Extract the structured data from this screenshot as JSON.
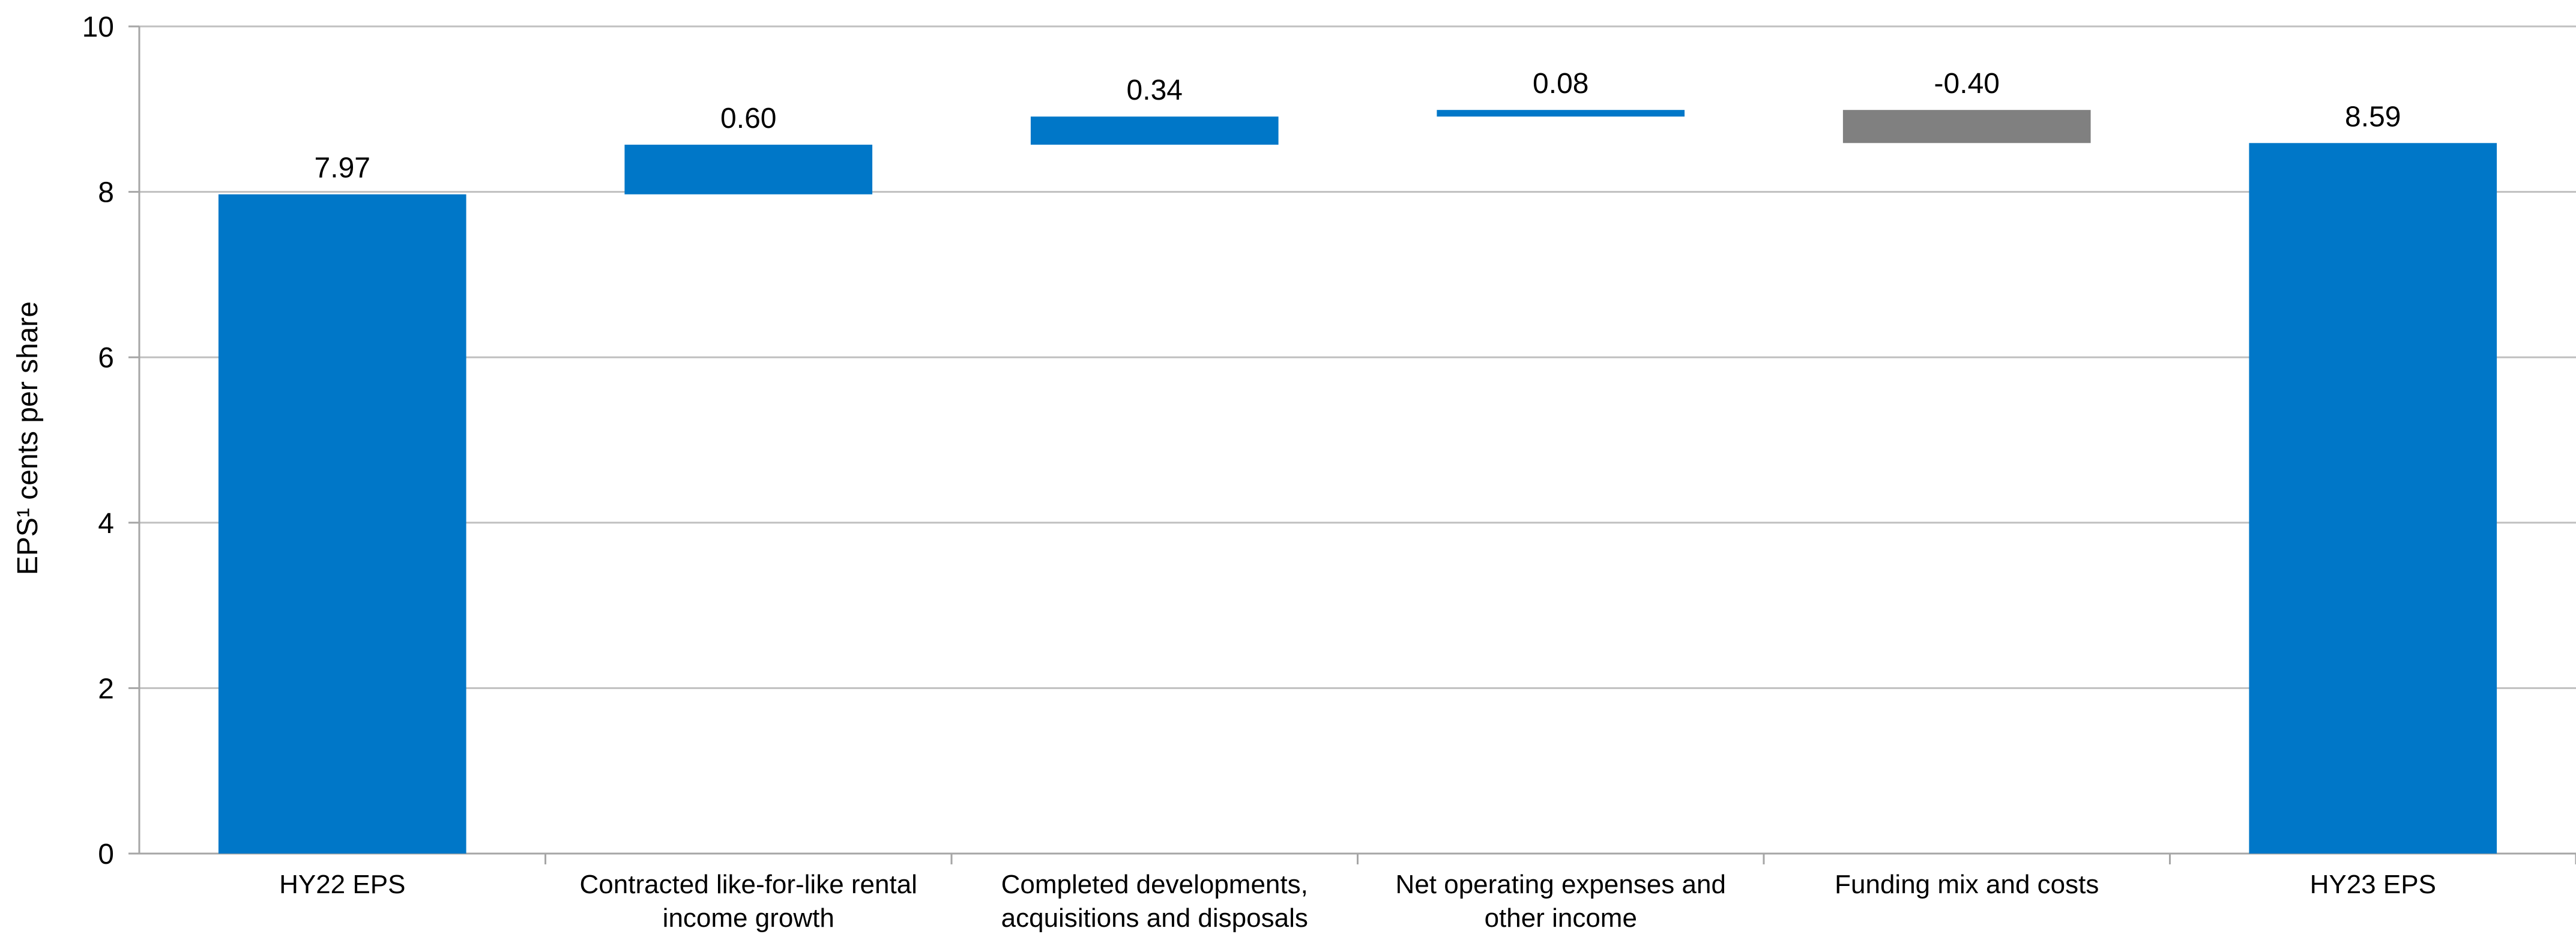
{
  "chart_data": {
    "type": "bar",
    "subtype": "waterfall",
    "ylabel": "EPS¹ cents per share",
    "ylim": [
      0,
      10
    ],
    "yticks": [
      0,
      2,
      4,
      6,
      8,
      10
    ],
    "grid": true,
    "categories": [
      [
        "HY22 EPS"
      ],
      [
        "Contracted like-for-like rental",
        "income growth"
      ],
      [
        "Completed developments,",
        "acquisitions and disposals"
      ],
      [
        "Net operating expenses and",
        "other income"
      ],
      [
        "Funding mix and costs"
      ],
      [
        "HY23 EPS"
      ]
    ],
    "bars": [
      {
        "kind": "total",
        "value": 7.97,
        "label": "7.97"
      },
      {
        "kind": "increase",
        "value": 0.6,
        "label": "0.60"
      },
      {
        "kind": "increase",
        "value": 0.34,
        "label": "0.34"
      },
      {
        "kind": "increase",
        "value": 0.08,
        "label": "0.08"
      },
      {
        "kind": "decrease",
        "value": -0.4,
        "label": "-0.40"
      },
      {
        "kind": "total",
        "value": 8.59,
        "label": "8.59"
      }
    ],
    "colors": {
      "total": "#0077c8",
      "increase": "#0077c8",
      "decrease": "#808080",
      "grid": "#c0c0c0",
      "axis": "#a6a6a6"
    }
  }
}
